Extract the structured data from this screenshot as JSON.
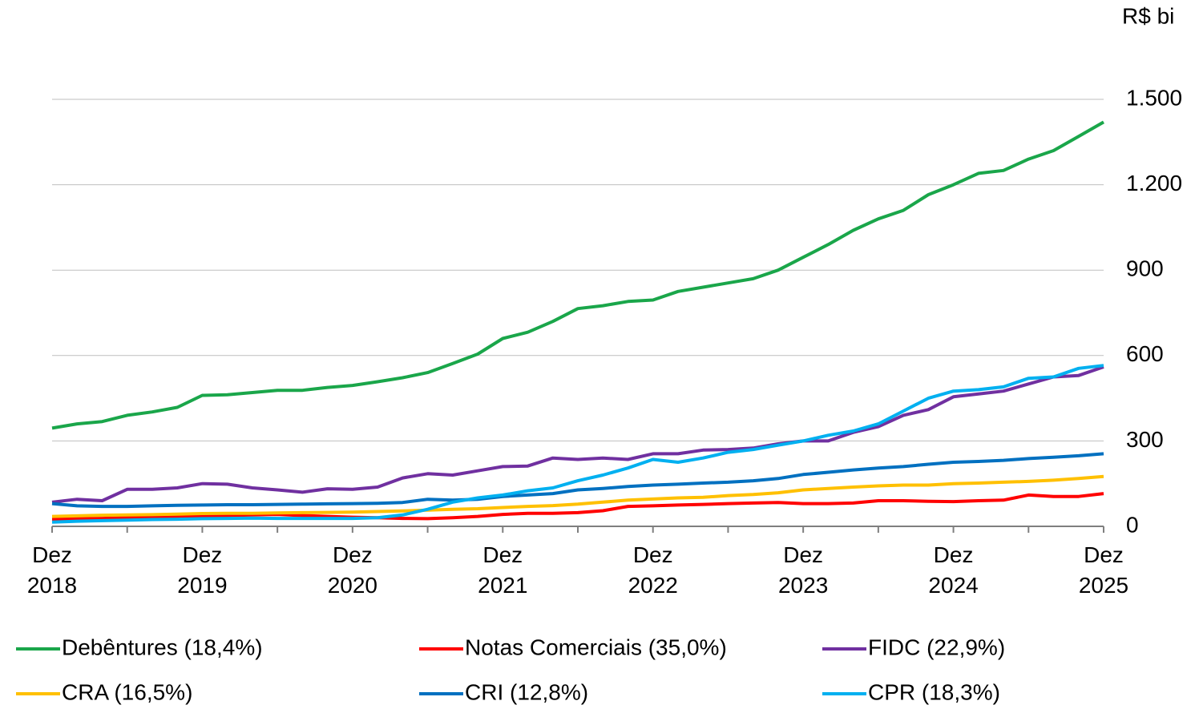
{
  "chart_data": {
    "type": "line",
    "y_label": "R$ bi",
    "categories": [
      "Dez 2018",
      null,
      null,
      null,
      null,
      null,
      "Dez 2019",
      null,
      null,
      null,
      null,
      null,
      "Dez 2020",
      null,
      null,
      null,
      null,
      null,
      "Dez 2021",
      null,
      null,
      null,
      null,
      null,
      "Dez 2022",
      null,
      null,
      null,
      null,
      null,
      "Dez 2023",
      null,
      null,
      null,
      null,
      null,
      "Dez 2024",
      null,
      null,
      null,
      null,
      null,
      "Dez 2025"
    ],
    "series": [
      {
        "name": "Debêntures (18,4%)",
        "color": "#1aa64a",
        "values": [
          345,
          360,
          368,
          390,
          402,
          418,
          460,
          462,
          470,
          478,
          478,
          488,
          495,
          508,
          522,
          540,
          572,
          605,
          660,
          682,
          720,
          765,
          775,
          790,
          795,
          825,
          840,
          855,
          870,
          900,
          945,
          990,
          1040,
          1080,
          1110,
          1165,
          1200,
          1240,
          1250,
          1290,
          1320,
          1370,
          1420
        ]
      },
      {
        "name": "Notas Comerciais (35,0%)",
        "color": "#ff0000",
        "values": [
          25,
          27,
          28,
          30,
          33,
          35,
          37,
          38,
          40,
          42,
          38,
          35,
          32,
          30,
          28,
          27,
          30,
          35,
          42,
          46,
          46,
          48,
          55,
          70,
          72,
          75,
          77,
          80,
          82,
          84,
          80,
          80,
          82,
          90,
          90,
          88,
          87,
          90,
          92,
          110,
          105,
          105,
          115
        ]
      },
      {
        "name": "FIDC (22,9%)",
        "color": "#7030a0",
        "values": [
          85,
          95,
          90,
          130,
          130,
          135,
          150,
          148,
          135,
          128,
          120,
          132,
          130,
          138,
          170,
          185,
          180,
          195,
          210,
          212,
          240,
          235,
          240,
          235,
          255,
          255,
          268,
          270,
          275,
          290,
          300,
          300,
          330,
          350,
          390,
          410,
          455,
          465,
          475,
          500,
          525,
          530,
          560
        ]
      },
      {
        "name": "CRA (16,5%)",
        "color": "#ffc000",
        "values": [
          35,
          37,
          39,
          40,
          41,
          43,
          45,
          46,
          46,
          47,
          48,
          49,
          50,
          52,
          54,
          57,
          60,
          62,
          66,
          70,
          73,
          78,
          85,
          92,
          96,
          100,
          102,
          108,
          112,
          118,
          128,
          133,
          138,
          142,
          145,
          145,
          150,
          152,
          155,
          158,
          162,
          168,
          175
        ]
      },
      {
        "name": "CRI (12,8%)",
        "color": "#0070c0",
        "values": [
          80,
          72,
          70,
          70,
          72,
          74,
          75,
          76,
          76,
          77,
          78,
          79,
          80,
          81,
          84,
          95,
          92,
          95,
          105,
          110,
          115,
          128,
          133,
          140,
          145,
          148,
          152,
          155,
          160,
          168,
          182,
          190,
          198,
          205,
          210,
          218,
          225,
          228,
          232,
          238,
          243,
          248,
          255
        ]
      },
      {
        "name": "CPR (18,3%)",
        "color": "#00b0f0",
        "values": [
          15,
          18,
          20,
          22,
          24,
          25,
          27,
          28,
          29,
          28,
          28,
          28,
          28,
          30,
          40,
          60,
          85,
          100,
          110,
          125,
          135,
          160,
          180,
          205,
          235,
          225,
          240,
          260,
          270,
          285,
          300,
          320,
          335,
          360,
          405,
          450,
          475,
          480,
          490,
          520,
          525,
          555,
          565
        ]
      }
    ],
    "ylim": [
      0,
      1500
    ],
    "yticks": [
      0,
      300,
      600,
      900,
      {
        "value": 1200,
        "label": "1.200"
      },
      {
        "value": 1500,
        "label": "1.500"
      }
    ],
    "grid": true
  }
}
